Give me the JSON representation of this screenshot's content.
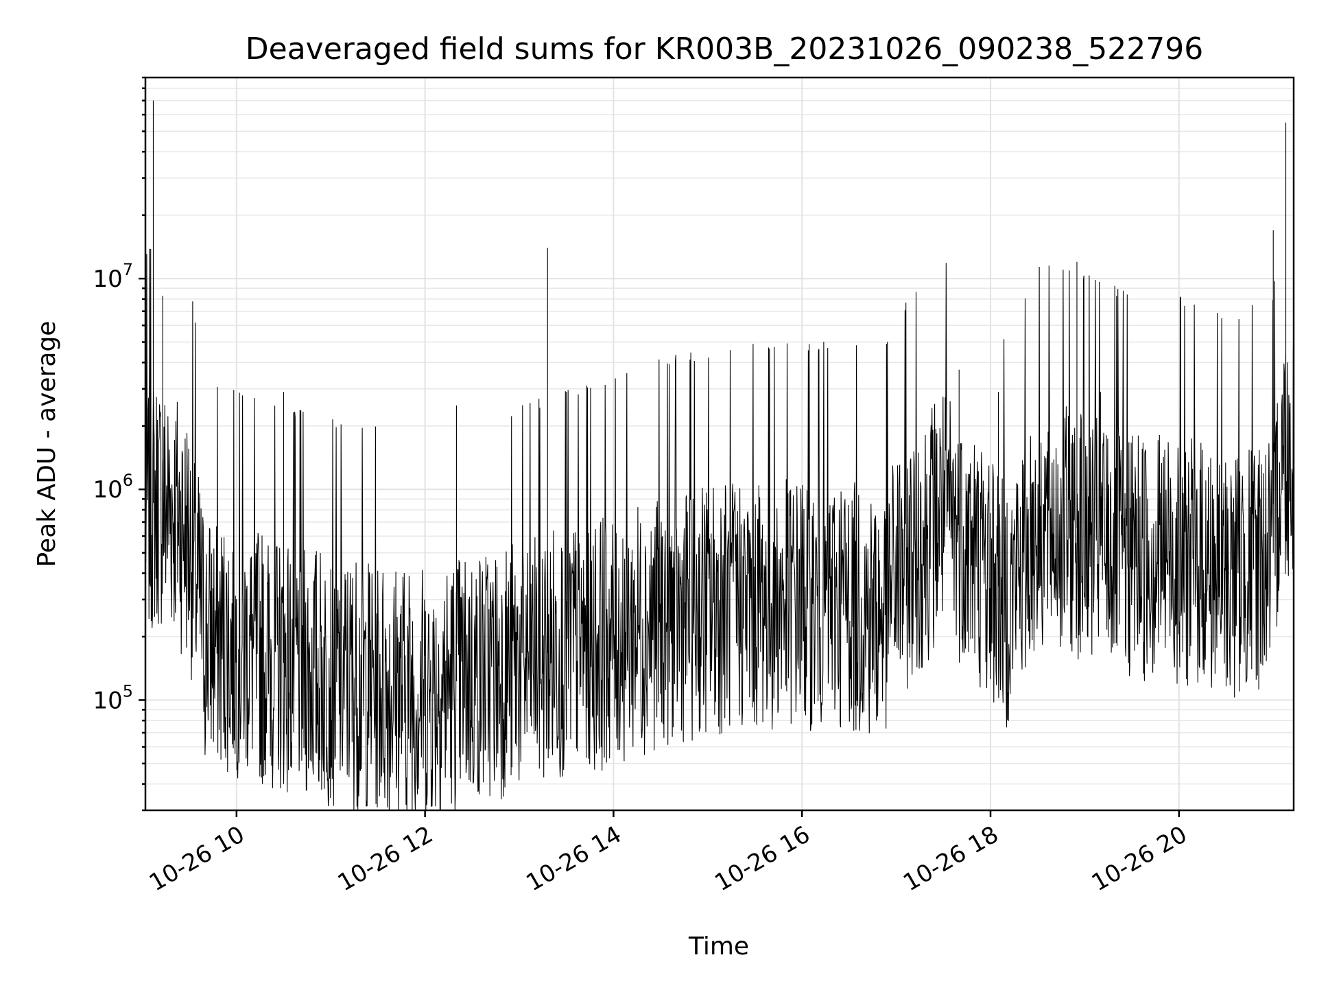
{
  "chart_data": {
    "type": "line",
    "title": "Deaveraged field sums for KR003B_20231026_090238_522796",
    "xlabel": "Time",
    "ylabel": "Peak ADU - average",
    "yscale": "log",
    "xlim": [
      "2023-10-26T09:02",
      "2023-10-26T21:13"
    ],
    "ylim": [
      30000,
      90000000
    ],
    "grid": true,
    "x_ticks": [
      {
        "label": "10-26 10",
        "time": "2023-10-26T10:00"
      },
      {
        "label": "10-26 12",
        "time": "2023-10-26T12:00"
      },
      {
        "label": "10-26 14",
        "time": "2023-10-26T14:00"
      },
      {
        "label": "10-26 16",
        "time": "2023-10-26T16:00"
      },
      {
        "label": "10-26 18",
        "time": "2023-10-26T18:00"
      },
      {
        "label": "10-26 20",
        "time": "2023-10-26T20:00"
      }
    ],
    "y_ticks": [
      {
        "base": "10",
        "exp": "5",
        "value": 100000
      },
      {
        "base": "10",
        "exp": "6",
        "value": 1000000
      },
      {
        "base": "10",
        "exp": "7",
        "value": 10000000
      }
    ],
    "series": [
      {
        "color": "#000000",
        "x": [
          "2023-10-26T09:02",
          "2023-10-26T09:10",
          "2023-10-26T09:20",
          "2023-10-26T09:30",
          "2023-10-26T09:40",
          "2023-10-26T10:00",
          "2023-10-26T10:30",
          "2023-10-26T11:00",
          "2023-10-26T11:30",
          "2023-10-26T12:00",
          "2023-10-26T12:30",
          "2023-10-26T13:00",
          "2023-10-26T13:30",
          "2023-10-26T14:00",
          "2023-10-26T14:30",
          "2023-10-26T15:00",
          "2023-10-26T15:30",
          "2023-10-26T16:00",
          "2023-10-26T16:30",
          "2023-10-26T16:50",
          "2023-10-26T17:00",
          "2023-10-26T17:30",
          "2023-10-26T18:00",
          "2023-10-26T18:10",
          "2023-10-26T18:30",
          "2023-10-26T19:00",
          "2023-10-26T19:30",
          "2023-10-26T20:00",
          "2023-10-26T20:30",
          "2023-10-26T21:00",
          "2023-10-26T21:05",
          "2023-10-26T21:13"
        ],
        "y": [
          800000,
          900000,
          800000,
          600000,
          200000,
          180000,
          150000,
          130000,
          120000,
          110000,
          130000,
          150000,
          180000,
          200000,
          250000,
          280000,
          300000,
          300000,
          300000,
          250000,
          400000,
          800000,
          400000,
          300000,
          700000,
          650000,
          500000,
          500000,
          400000,
          500000,
          1500000,
          1600000
        ],
        "spikes": [
          {
            "x": "2023-10-26T09:07",
            "y": 70000000
          },
          {
            "x": "2023-10-26T09:13",
            "y": 8300000
          },
          {
            "x": "2023-10-26T10:30",
            "y": 2900000
          },
          {
            "x": "2023-10-26T12:20",
            "y": 2500000
          },
          {
            "x": "2023-10-26T13:18",
            "y": 14000000
          },
          {
            "x": "2023-10-26T13:30",
            "y": 2900000
          },
          {
            "x": "2023-10-26T17:40",
            "y": 3700000
          },
          {
            "x": "2023-10-26T18:05",
            "y": 2900000
          },
          {
            "x": "2023-10-26T18:55",
            "y": 12000000
          },
          {
            "x": "2023-10-26T19:10",
            "y": 2900000
          },
          {
            "x": "2023-10-26T21:00",
            "y": 17000000
          },
          {
            "x": "2023-10-26T21:08",
            "y": 55000000
          }
        ]
      }
    ]
  }
}
